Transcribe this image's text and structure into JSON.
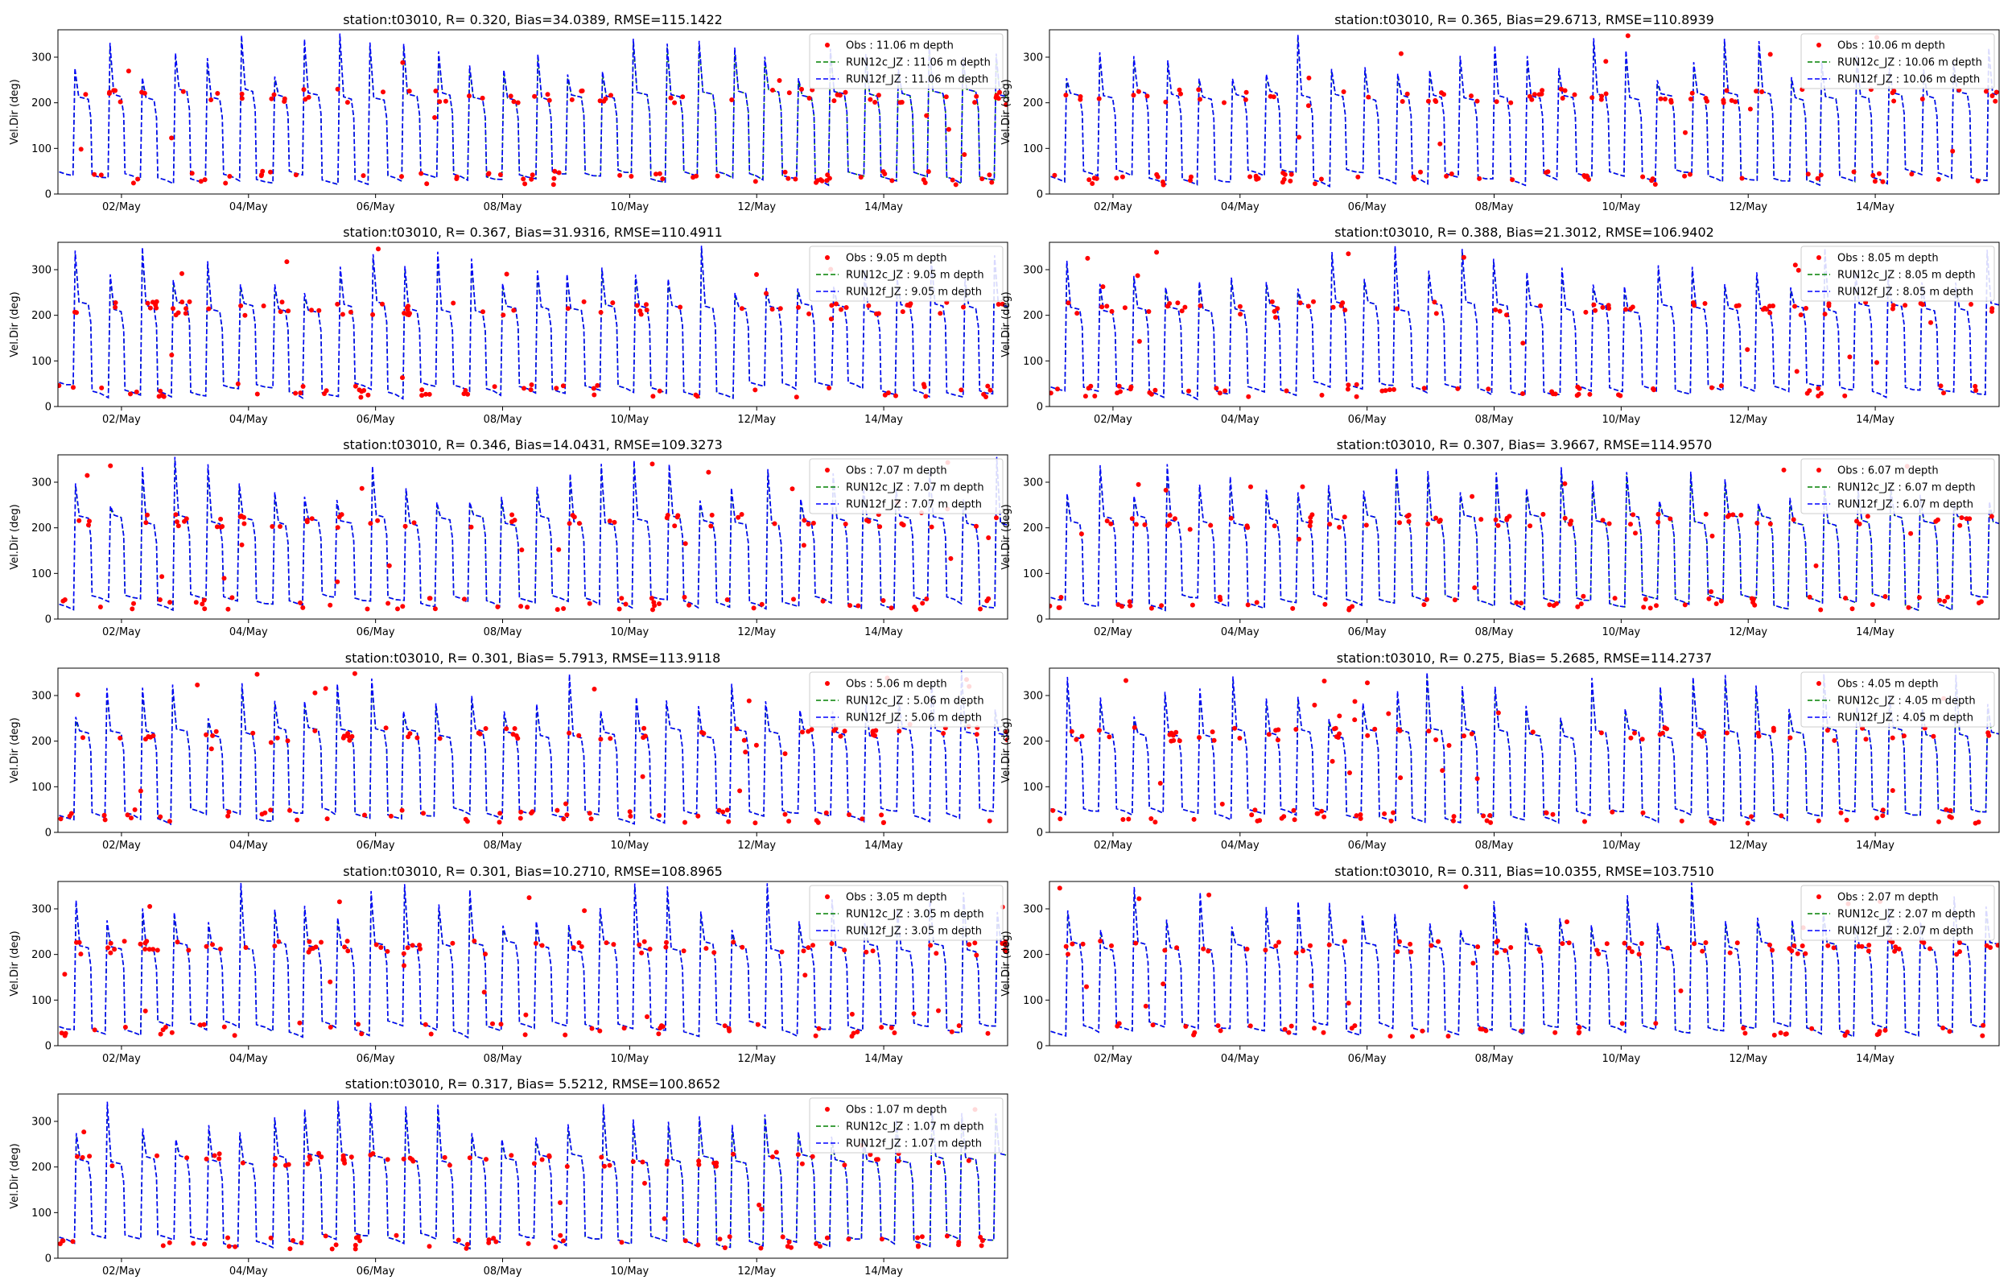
{
  "figure": {
    "background": "#ffffff"
  },
  "colors": {
    "obs": "#ff0000",
    "run12c": "#008000",
    "run12f": "#0000ff",
    "axes": "#000000"
  },
  "shared_axes": {
    "ylabel": "Vel.Dir (deg)",
    "ylim": [
      0,
      360
    ],
    "yticks": [
      0,
      100,
      200,
      300
    ],
    "xlim_days": [
      0.0,
      14.95
    ],
    "xticks": [
      {
        "day": 1,
        "label": "02/May"
      },
      {
        "day": 3,
        "label": "04/May"
      },
      {
        "day": 5,
        "label": "06/May"
      },
      {
        "day": 7,
        "label": "08/May"
      },
      {
        "day": 9,
        "label": "10/May"
      },
      {
        "day": 11,
        "label": "12/May"
      },
      {
        "day": 13,
        "label": "14/May"
      }
    ]
  },
  "chart_data": [
    {
      "type": "line",
      "title": "station:t03010, R= 0.320, Bias=34.0389, RMSE=115.1422",
      "xlabel": "",
      "ylabel": "Vel.Dir (deg)",
      "ylim": [
        0,
        360
      ],
      "legend": "top-right",
      "series": [
        {
          "name": "Obs : 11.06 m depth",
          "style": "points"
        },
        {
          "name": "RUN12c_JZ : 11.06 m depth",
          "style": "dashed"
        },
        {
          "name": "RUN12f_JZ : 11.06 m depth",
          "style": "dashed"
        }
      ]
    },
    {
      "type": "line",
      "title": "station:t03010, R= 0.365, Bias=29.6713, RMSE=110.8939",
      "xlabel": "",
      "ylabel": "Vel.Dir (deg)",
      "ylim": [
        0,
        360
      ],
      "legend": "top-right",
      "series": [
        {
          "name": "Obs : 10.06 m depth",
          "style": "points"
        },
        {
          "name": "RUN12c_JZ : 10.06 m depth",
          "style": "dashed"
        },
        {
          "name": "RUN12f_JZ : 10.06 m depth",
          "style": "dashed"
        }
      ]
    },
    {
      "type": "line",
      "title": "station:t03010, R= 0.367, Bias=31.9316, RMSE=110.4911",
      "xlabel": "",
      "ylabel": "Vel.Dir (deg)",
      "ylim": [
        0,
        360
      ],
      "legend": "top-right",
      "series": [
        {
          "name": "Obs : 9.05 m depth",
          "style": "points"
        },
        {
          "name": "RUN12c_JZ : 9.05 m depth",
          "style": "dashed"
        },
        {
          "name": "RUN12f_JZ : 9.05 m depth",
          "style": "dashed"
        }
      ]
    },
    {
      "type": "line",
      "title": "station:t03010, R= 0.388, Bias=21.3012, RMSE=106.9402",
      "xlabel": "",
      "ylabel": "Vel.Dir (deg)",
      "ylim": [
        0,
        360
      ],
      "legend": "top-right",
      "series": [
        {
          "name": "Obs : 8.05 m depth",
          "style": "points"
        },
        {
          "name": "RUN12c_JZ : 8.05 m depth",
          "style": "dashed"
        },
        {
          "name": "RUN12f_JZ : 8.05 m depth",
          "style": "dashed"
        }
      ]
    },
    {
      "type": "line",
      "title": "station:t03010, R= 0.346, Bias=14.0431, RMSE=109.3273",
      "xlabel": "",
      "ylabel": "Vel.Dir (deg)",
      "ylim": [
        0,
        360
      ],
      "legend": "top-right",
      "series": [
        {
          "name": "Obs : 7.07 m depth",
          "style": "points"
        },
        {
          "name": "RUN12c_JZ : 7.07 m depth",
          "style": "dashed"
        },
        {
          "name": "RUN12f_JZ : 7.07 m depth",
          "style": "dashed"
        }
      ]
    },
    {
      "type": "line",
      "title": "station:t03010, R= 0.307, Bias= 3.9667, RMSE=114.9570",
      "xlabel": "",
      "ylabel": "Vel.Dir (deg)",
      "ylim": [
        0,
        360
      ],
      "legend": "top-right",
      "series": [
        {
          "name": "Obs : 6.07 m depth",
          "style": "points"
        },
        {
          "name": "RUN12c_JZ : 6.07 m depth",
          "style": "dashed"
        },
        {
          "name": "RUN12f_JZ : 6.07 m depth",
          "style": "dashed"
        }
      ]
    },
    {
      "type": "line",
      "title": "station:t03010, R= 0.301, Bias= 5.7913, RMSE=113.9118",
      "xlabel": "",
      "ylabel": "Vel.Dir (deg)",
      "ylim": [
        0,
        360
      ],
      "legend": "top-right",
      "series": [
        {
          "name": "Obs : 5.06 m depth",
          "style": "points"
        },
        {
          "name": "RUN12c_JZ : 5.06 m depth",
          "style": "dashed"
        },
        {
          "name": "RUN12f_JZ : 5.06 m depth",
          "style": "dashed"
        }
      ]
    },
    {
      "type": "line",
      "title": "station:t03010, R= 0.275, Bias= 5.2685, RMSE=114.2737",
      "xlabel": "",
      "ylabel": "Vel.Dir (deg)",
      "ylim": [
        0,
        360
      ],
      "legend": "top-right",
      "series": [
        {
          "name": "Obs : 4.05 m depth",
          "style": "points"
        },
        {
          "name": "RUN12c_JZ : 4.05 m depth",
          "style": "dashed"
        },
        {
          "name": "RUN12f_JZ : 4.05 m depth",
          "style": "dashed"
        }
      ]
    },
    {
      "type": "line",
      "title": "station:t03010, R= 0.301, Bias=10.2710, RMSE=108.8965",
      "xlabel": "",
      "ylabel": "Vel.Dir (deg)",
      "ylim": [
        0,
        360
      ],
      "legend": "top-right",
      "series": [
        {
          "name": "Obs : 3.05 m depth",
          "style": "points"
        },
        {
          "name": "RUN12c_JZ : 3.05 m depth",
          "style": "dashed"
        },
        {
          "name": "RUN12f_JZ : 3.05 m depth",
          "style": "dashed"
        }
      ]
    },
    {
      "type": "line",
      "title": "station:t03010, R= 0.311, Bias=10.0355, RMSE=103.7510",
      "xlabel": "",
      "ylabel": "Vel.Dir (deg)",
      "ylim": [
        0,
        360
      ],
      "legend": "top-right",
      "series": [
        {
          "name": "Obs : 2.07 m depth",
          "style": "points"
        },
        {
          "name": "RUN12c_JZ : 2.07 m depth",
          "style": "dashed"
        },
        {
          "name": "RUN12f_JZ : 2.07 m depth",
          "style": "dashed"
        }
      ]
    },
    {
      "type": "line",
      "title": "station:t03010, R= 0.317, Bias= 5.5212, RMSE=100.8652",
      "xlabel": "",
      "ylabel": "Vel.Dir (deg)",
      "ylim": [
        0,
        360
      ],
      "legend": "top-right",
      "series": [
        {
          "name": "Obs : 1.07 m depth",
          "style": "points"
        },
        {
          "name": "RUN12c_JZ : 1.07 m depth",
          "style": "dashed"
        },
        {
          "name": "RUN12f_JZ : 1.07 m depth",
          "style": "dashed"
        }
      ]
    }
  ]
}
